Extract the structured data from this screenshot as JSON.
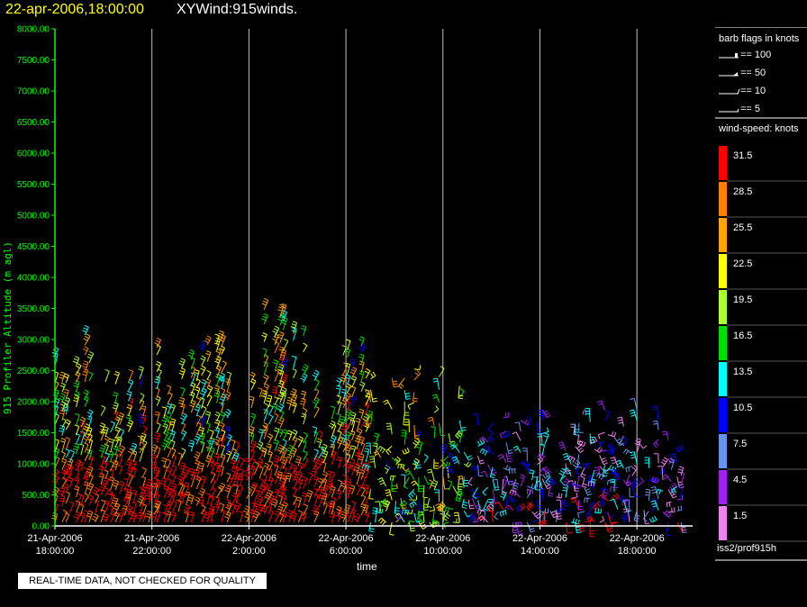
{
  "header": {
    "datetime": "22-apr-2006,18:00:00",
    "title": "XYWind:915winds."
  },
  "disclaimer": "REAL-TIME DATA, NOT CHECKED FOR QUALITY",
  "source_label": "iss2/prof915h",
  "barb_legend": {
    "title": "barb flags in knots",
    "items": [
      {
        "label": "== 100",
        "kind": "pennant"
      },
      {
        "label": "== 50",
        "kind": "half-pennant"
      },
      {
        "label": "== 10",
        "kind": "full-barb"
      },
      {
        "label": "== 5",
        "kind": "half-barb"
      }
    ]
  },
  "speed_legend": {
    "title": "wind-speed: knots",
    "items": [
      {
        "label": "31.5",
        "color": "#ff0000"
      },
      {
        "label": "28.5",
        "color": "#ff7f00"
      },
      {
        "label": "25.5",
        "color": "#ffa500"
      },
      {
        "label": "22.5",
        "color": "#ffff00"
      },
      {
        "label": "19.5",
        "color": "#adff2f"
      },
      {
        "label": "16.5",
        "color": "#00e000"
      },
      {
        "label": "13.5",
        "color": "#00ffff"
      },
      {
        "label": "10.5",
        "color": "#0000ff"
      },
      {
        "label": "7.5",
        "color": "#6495ed"
      },
      {
        "label": "4.5",
        "color": "#a020f0"
      },
      {
        "label": "1.5",
        "color": "#ee82ee"
      }
    ]
  },
  "chart_data": {
    "type": "scatter",
    "ylabel": "915 Profiler Altitude (m agl)",
    "xlabel": "time",
    "ylim": [
      0,
      8000
    ],
    "xlim_hours": [
      0,
      26
    ],
    "yticks": [
      "0.00",
      "500.00",
      "1000.00",
      "1500.00",
      "2000.00",
      "2500.00",
      "3000.00",
      "3500.00",
      "4000.00",
      "4500.00",
      "5000.00",
      "5500.00",
      "6000.00",
      "6500.00",
      "7000.00",
      "7500.00",
      "8000.00"
    ],
    "xticks": [
      {
        "date": "21-Apr-2006",
        "time": "18:00:00"
      },
      {
        "date": "21-Apr-2006",
        "time": "22:00:00"
      },
      {
        "date": "22-Apr-2006",
        "time": "2:00:00"
      },
      {
        "date": "22-Apr-2006",
        "time": "6:00:00"
      },
      {
        "date": "22-Apr-2006",
        "time": "10:00:00"
      },
      {
        "date": "22-Apr-2006",
        "time": "14:00:00"
      },
      {
        "date": "22-Apr-2006",
        "time": "18:00:00"
      }
    ],
    "grid": "vertical",
    "colors": {
      "axis": "#00ff00",
      "grid": "#c0c0c0",
      "tick_text": "#00ff00"
    }
  }
}
